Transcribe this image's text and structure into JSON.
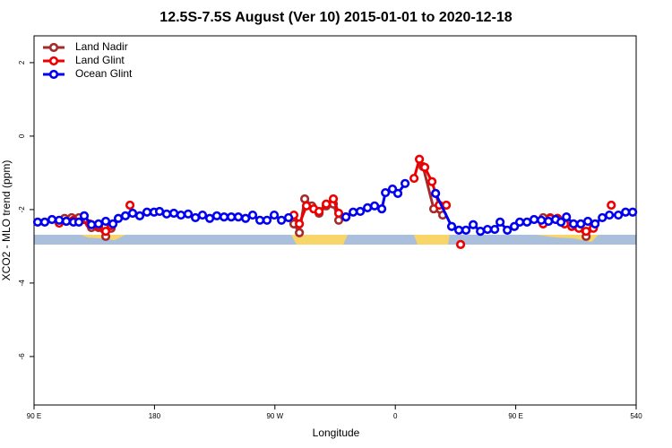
{
  "chart_data": {
    "type": "line",
    "title": "12.5S-7.5S August (Ver 10)   2015-01-01 to 2020-12-18",
    "xlabel": "Longitude",
    "ylabel": "XCO2 - MLO trend (ppm)",
    "xlim": [
      90,
      540
    ],
    "ylim": [
      -7.32,
      2.73
    ],
    "xticks": [
      {
        "value": 90,
        "label": "90 E"
      },
      180,
      {
        "value": 270,
        "label": "90 W"
      },
      {
        "value": 360,
        "label": "0"
      },
      {
        "value": 450,
        "label": "90 E"
      },
      540
    ],
    "yticks": [
      2,
      0,
      -2,
      -4,
      -6
    ],
    "legend": "top-left",
    "series": [
      {
        "name": "Land Nadir",
        "color": "#a52a2a",
        "x": [
          112.8,
          118.1,
          123.5,
          132.9,
          138.2,
          143.6,
          147.6,
          null,
          284.2,
          288.3,
          292.3,
          297.6,
          303.0,
          308.4,
          313.7,
          317.7,
          323.1,
          null,
          380.7,
          388.7,
          395.4,
          null,
          470.5,
          475.8,
          481.2,
          486.5,
          491.9,
          497.2,
          502.6,
          508.0
        ],
        "values": [
          -2.24,
          -2.22,
          -2.22,
          -2.49,
          -2.49,
          -2.73,
          -2.51,
          null,
          -2.39,
          -2.63,
          -1.71,
          -1.9,
          -2.1,
          -1.9,
          -1.85,
          -2.29,
          -2.2,
          null,
          -0.83,
          -1.98,
          -2.15,
          null,
          -2.22,
          -2.22,
          -2.24,
          -2.37,
          -2.44,
          -2.49,
          -2.73,
          -2.49
        ]
      },
      {
        "name": "Land Glint",
        "color": "#ee0000",
        "x": [
          108.8,
          114.1,
          119.5,
          131.5,
          138.2,
          143.6,
          147.6,
          null,
          161.7,
          null,
          284.2,
          288.3,
          293.6,
          299.0,
          303.0,
          308.4,
          313.7,
          317.7,
          323.1,
          null,
          374.0,
          378.0,
          382.0,
          387.4,
          392.8,
          398.1,
          null,
          408.8,
          null,
          470.5,
          475.8,
          481.2,
          486.5,
          491.9,
          497.2,
          502.6,
          508.0,
          null,
          521.4
        ],
        "values": [
          -2.37,
          -2.32,
          -2.29,
          -2.39,
          -2.46,
          -2.59,
          -2.44,
          null,
          -1.88,
          null,
          -2.15,
          -2.39,
          -1.9,
          -1.98,
          -2.05,
          -1.85,
          -1.71,
          -2.1,
          -2.2,
          null,
          -1.15,
          -0.63,
          -0.85,
          -1.24,
          -1.88,
          -1.88,
          null,
          -2.95,
          null,
          -2.39,
          -2.24,
          -2.24,
          -2.39,
          -2.46,
          -2.51,
          -2.59,
          -2.51,
          null,
          -1.88
        ]
      },
      {
        "name": "Ocean Glint",
        "color": "#0000ee",
        "x": [
          92.7,
          98.0,
          103.4,
          108.8,
          114.1,
          119.5,
          123.5,
          127.5,
          132.9,
          138.2,
          143.6,
          149.0,
          153.0,
          158.3,
          163.7,
          169.0,
          174.4,
          179.7,
          183.8,
          189.1,
          194.5,
          199.8,
          205.2,
          210.6,
          215.9,
          221.3,
          226.6,
          232.0,
          237.4,
          242.7,
          248.1,
          253.4,
          258.8,
          264.1,
          269.5,
          274.9,
          280.2,
          null,
          323.1,
          328.5,
          333.8,
          339.2,
          344.5,
          349.9,
          352.6,
          357.9,
          361.9,
          367.3,
          null,
          390.1,
          402.1,
          407.5,
          412.8,
          418.2,
          423.6,
          428.9,
          434.3,
          438.3,
          443.7,
          449.0,
          453.0,
          458.4,
          463.7,
          469.1,
          474.5,
          479.8,
          483.8,
          487.9,
          493.2,
          498.6,
          503.9,
          509.3,
          514.7,
          520.0,
          526.7,
          532.1,
          537.4
        ],
        "values": [
          -2.34,
          -2.34,
          -2.27,
          -2.29,
          -2.32,
          -2.34,
          -2.34,
          -2.17,
          -2.41,
          -2.39,
          -2.32,
          -2.39,
          -2.24,
          -2.17,
          -2.1,
          -2.17,
          -2.07,
          -2.07,
          -2.05,
          -2.12,
          -2.1,
          -2.15,
          -2.12,
          -2.22,
          -2.15,
          -2.24,
          -2.17,
          -2.2,
          -2.2,
          -2.2,
          -2.24,
          -2.15,
          -2.29,
          -2.29,
          -2.15,
          -2.29,
          -2.22,
          null,
          -2.2,
          -2.07,
          -2.05,
          -1.95,
          -1.9,
          -1.98,
          -1.54,
          -1.44,
          -1.56,
          -1.29,
          null,
          -1.56,
          -2.46,
          -2.56,
          -2.56,
          -2.41,
          -2.59,
          -2.54,
          -2.54,
          -2.34,
          -2.56,
          -2.46,
          -2.34,
          -2.34,
          -2.27,
          -2.29,
          -2.32,
          -2.27,
          -2.34,
          -2.2,
          -2.39,
          -2.39,
          -2.32,
          -2.39,
          -2.22,
          -2.15,
          -2.15,
          -2.07,
          -2.07
        ]
      }
    ]
  }
}
